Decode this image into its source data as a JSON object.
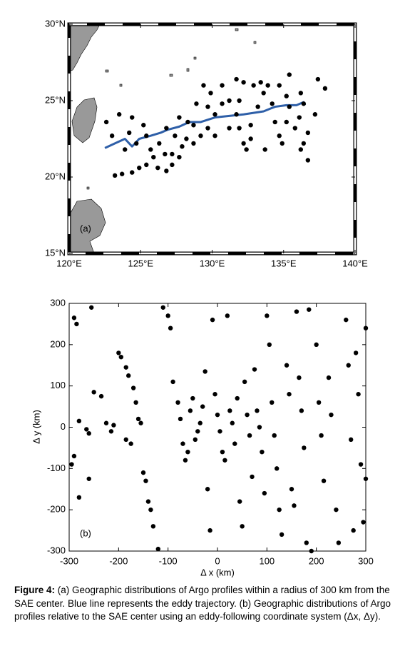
{
  "chart_data": [
    {
      "type": "scatter",
      "panel_label": "(a)",
      "color": "#000000",
      "x": [
        122.6,
        123.0,
        123.5,
        124.2,
        124.4,
        124.7,
        125.2,
        125.4,
        125.7,
        125.9,
        126.3,
        126.7,
        126.8,
        126.2,
        124.9,
        123.2,
        123.7,
        124.4,
        127.4,
        127.7,
        128.3,
        128.7,
        129.2,
        129.7,
        130.2,
        130.7,
        131.2,
        131.7,
        131.9,
        132.2,
        132.7,
        133.2,
        133.6,
        133.9,
        134.2,
        134.4,
        134.7,
        134.9,
        135.2,
        135.4,
        135.8,
        136.1,
        136.4,
        136.7,
        133.7,
        131.7,
        132.2,
        132.9,
        133.4,
        134.7,
        135.4,
        137.4,
        137.9,
        130.7,
        129.9,
        129.7,
        128.7,
        127.9,
        127.2,
        131.2,
        136.2,
        136.7,
        136.4,
        137.2,
        136.2,
        135.2,
        132.7,
        132.4,
        131.9,
        129.4,
        130.2,
        128.9,
        128.2,
        127.7,
        127.2,
        126.8,
        123.9,
        125.4
      ],
      "y": [
        23.6,
        22.7,
        24.1,
        22.9,
        23.9,
        22.2,
        23.4,
        22.7,
        21.8,
        21.3,
        22.2,
        21.5,
        20.4,
        20.6,
        20.6,
        20.1,
        20.2,
        20.3,
        22.7,
        23.9,
        23.6,
        23.4,
        22.7,
        23.2,
        24.1,
        24.8,
        25.0,
        24.1,
        23.2,
        22.2,
        23.4,
        24.6,
        25.5,
        26.0,
        24.8,
        23.6,
        22.7,
        22.2,
        23.6,
        24.6,
        23.2,
        23.9,
        22.2,
        22.9,
        21.8,
        26.4,
        26.2,
        26.0,
        26.2,
        26.0,
        26.7,
        26.4,
        25.8,
        26.0,
        25.5,
        24.6,
        22.2,
        22.0,
        21.5,
        23.2,
        21.8,
        21.1,
        24.8,
        24.1,
        25.5,
        25.3,
        22.5,
        21.8,
        25.0,
        26.0,
        22.7,
        24.8,
        22.5,
        21.3,
        20.8,
        23.2,
        21.8,
        20.8
      ],
      "line": {
        "color": "#2e5fa8",
        "x": [
          122.5,
          123.2,
          123.9,
          124.4,
          124.9,
          125.7,
          126.4,
          126.9,
          127.7,
          128.4,
          129.2,
          130.2,
          131.2,
          132.2,
          132.9,
          133.6,
          134.4,
          135.2,
          135.9,
          136.4,
          136.5
        ],
        "y": [
          21.9,
          22.2,
          22.5,
          22.0,
          22.5,
          22.7,
          22.9,
          23.1,
          23.3,
          23.6,
          23.6,
          23.9,
          24.0,
          24.1,
          24.2,
          24.3,
          24.6,
          24.7,
          24.7,
          24.9,
          24.7
        ]
      },
      "xlim": [
        120,
        140
      ],
      "ylim": [
        15,
        30
      ],
      "xticks": [
        {
          "value": 120,
          "label": "120°E"
        },
        {
          "value": 125,
          "label": "125°E"
        },
        {
          "value": 130,
          "label": "130°E"
        },
        {
          "value": 135,
          "label": "135°E"
        },
        {
          "value": 140,
          "label": "140°E"
        }
      ],
      "yticks": [
        {
          "value": 15,
          "label": "15°N"
        },
        {
          "value": 20,
          "label": "20°N"
        },
        {
          "value": 25,
          "label": "25°N"
        },
        {
          "value": 30,
          "label": "30°N"
        }
      ]
    },
    {
      "type": "scatter",
      "panel_label": "(b)",
      "color": "#000000",
      "x_label": "Δ x (km)",
      "y_label": "Δ y (km)",
      "x": [
        -290,
        -285,
        -255,
        -280,
        -265,
        -260,
        -290,
        -295,
        -280,
        -260,
        -250,
        -235,
        -225,
        -215,
        -210,
        -200,
        -195,
        -185,
        -180,
        -175,
        -185,
        -170,
        -165,
        -160,
        -155,
        -150,
        -145,
        -140,
        -135,
        -130,
        -120,
        -110,
        -100,
        -95,
        -90,
        -80,
        -75,
        -70,
        -65,
        -60,
        -55,
        -50,
        -45,
        -40,
        -35,
        -30,
        -25,
        -20,
        -15,
        -10,
        -5,
        0,
        5,
        10,
        15,
        20,
        25,
        30,
        35,
        40,
        45,
        50,
        55,
        60,
        65,
        70,
        75,
        80,
        85,
        90,
        95,
        100,
        105,
        110,
        115,
        120,
        125,
        130,
        140,
        145,
        150,
        155,
        160,
        165,
        170,
        175,
        180,
        185,
        190,
        200,
        205,
        210,
        215,
        225,
        230,
        240,
        245,
        260,
        265,
        270,
        275,
        280,
        285,
        290,
        295,
        300,
        300
      ],
      "y": [
        265,
        250,
        290,
        15,
        -5,
        -15,
        -70,
        -90,
        -170,
        -125,
        85,
        75,
        10,
        -10,
        5,
        180,
        170,
        145,
        125,
        -40,
        -30,
        95,
        60,
        20,
        10,
        -110,
        -130,
        -180,
        -200,
        -240,
        -295,
        290,
        270,
        240,
        110,
        60,
        20,
        -40,
        -80,
        -60,
        40,
        70,
        -30,
        -10,
        10,
        50,
        135,
        -150,
        -250,
        260,
        80,
        30,
        -10,
        -60,
        -80,
        270,
        40,
        10,
        -40,
        70,
        -180,
        -240,
        110,
        30,
        -20,
        -120,
        140,
        40,
        0,
        -60,
        -160,
        270,
        200,
        60,
        -20,
        -100,
        -200,
        -260,
        150,
        80,
        -150,
        -190,
        280,
        120,
        40,
        -50,
        -280,
        285,
        -300,
        200,
        60,
        -20,
        -130,
        120,
        30,
        -200,
        -280,
        260,
        150,
        -30,
        -250,
        180,
        80,
        -90,
        -230,
        240,
        -125
      ],
      "xlim": [
        -300,
        300
      ],
      "ylim": [
        -300,
        300
      ],
      "xticks": [
        -300,
        -200,
        -100,
        0,
        100,
        200,
        300
      ],
      "yticks": [
        -300,
        -200,
        -100,
        0,
        100,
        200,
        300
      ]
    }
  ],
  "caption": {
    "label": "Figure 4:",
    "text": "(a) Geographic distributions of Argo profiles within a radius of 300 km from the SAE center. Blue line represents the eddy trajectory. (b) Geographic distributions of Argo profiles relative to the SAE center using an eddy-following coordinate system (Δx, Δy)."
  }
}
